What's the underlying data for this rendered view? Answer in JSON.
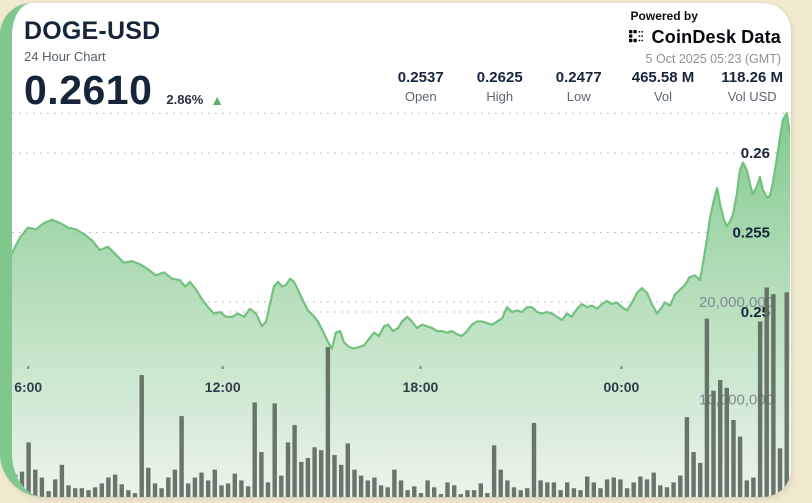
{
  "colors": {
    "frame_cream": "#f1e9ce",
    "stripe_green": "#7fc78d",
    "brand_dark": "#17253b",
    "accent_green": "#52b56a"
  },
  "header": {
    "symbol": "DOGE-USD",
    "subtitle": "24 Hour Chart",
    "price": "0.2610",
    "change_percent": "2.86%",
    "direction": "up",
    "up_arrow": "▲",
    "powered_by": "Powered by",
    "brand_part1": "CoinDesk",
    "brand_part2": "Data",
    "timestamp": "5 Oct 2025 05:23 (GMT)"
  },
  "stats": [
    {
      "value": "0.2537",
      "label": "Open"
    },
    {
      "value": "0.2625",
      "label": "High"
    },
    {
      "value": "0.2477",
      "label": "Low"
    },
    {
      "value": "465.58 M",
      "label": "Vol"
    },
    {
      "value": "118.26 M",
      "label": "Vol USD"
    }
  ],
  "chart_data": {
    "type": "line",
    "title": "DOGE-USD 24 Hour Chart",
    "grid": "dotted horizontal",
    "legend_position": "none",
    "colors": {
      "line": "#72c17f",
      "fill_top": "#7cc78a",
      "fill_bottom": "#eaf3e8",
      "volume_bar": "#5d6a5e",
      "tick_dash": "#8a9096"
    },
    "x_axis": {
      "window_hours": 24,
      "ticks": [
        {
          "label": "6:00",
          "hours_from_start": 0.5
        },
        {
          "label": "12:00",
          "hours_from_start": 6.5
        },
        {
          "label": "18:00",
          "hours_from_start": 12.6
        },
        {
          "label": "00:00",
          "hours_from_start": 18.8
        }
      ]
    },
    "price_axis": {
      "side": "right",
      "range": [
        0.2465,
        0.2635
      ],
      "ticks": [
        {
          "price": 0.2625,
          "label": ""
        },
        {
          "price": 0.26,
          "label": "0.26"
        },
        {
          "price": 0.255,
          "label": "0.255"
        },
        {
          "price": 0.25,
          "label": "0.25"
        }
      ]
    },
    "volume_axis": {
      "side": "right",
      "ticks": [
        {
          "millions": 20,
          "label": "20,000,000"
        },
        {
          "millions": 10,
          "label": "10,000,000"
        }
      ]
    },
    "price_series": {
      "name": "DOGE-USD price",
      "points": [
        [
          0,
          0.2537
        ],
        [
          0.25,
          0.2547
        ],
        [
          0.49,
          0.2553
        ],
        [
          0.74,
          0.2552
        ],
        [
          0.99,
          0.2556
        ],
        [
          1.23,
          0.2558
        ],
        [
          1.48,
          0.2556
        ],
        [
          1.73,
          0.2553
        ],
        [
          1.97,
          0.2552
        ],
        [
          2.22,
          0.2549
        ],
        [
          2.47,
          0.2545
        ],
        [
          2.71,
          0.2539
        ],
        [
          2.96,
          0.2541
        ],
        [
          3.21,
          0.2536
        ],
        [
          3.45,
          0.2531
        ],
        [
          3.7,
          0.2532
        ],
        [
          3.95,
          0.253
        ],
        [
          4.19,
          0.2527
        ],
        [
          4.44,
          0.2523
        ],
        [
          4.69,
          0.2525
        ],
        [
          4.93,
          0.2521
        ],
        [
          5.18,
          0.252
        ],
        [
          5.34,
          0.2516
        ],
        [
          5.49,
          0.2519
        ],
        [
          5.68,
          0.2514
        ],
        [
          5.86,
          0.2508
        ],
        [
          6.05,
          0.2503
        ],
        [
          6.23,
          0.2499
        ],
        [
          6.42,
          0.25
        ],
        [
          6.6,
          0.2497
        ],
        [
          6.79,
          0.2497
        ],
        [
          6.97,
          0.2499
        ],
        [
          7.16,
          0.2497
        ],
        [
          7.34,
          0.2502
        ],
        [
          7.53,
          0.2499
        ],
        [
          7.71,
          0.2491
        ],
        [
          7.84,
          0.2494
        ],
        [
          7.96,
          0.2505
        ],
        [
          8.08,
          0.2516
        ],
        [
          8.21,
          0.2519
        ],
        [
          8.33,
          0.2516
        ],
        [
          8.45,
          0.2517
        ],
        [
          8.58,
          0.2521
        ],
        [
          8.7,
          0.2519
        ],
        [
          8.82,
          0.2514
        ],
        [
          8.98,
          0.2507
        ],
        [
          9.13,
          0.2501
        ],
        [
          9.28,
          0.2498
        ],
        [
          9.44,
          0.2494
        ],
        [
          9.59,
          0.2488
        ],
        [
          9.75,
          0.2481
        ],
        [
          9.87,
          0.2477
        ],
        [
          9.99,
          0.2487
        ],
        [
          10.12,
          0.2488
        ],
        [
          10.24,
          0.2481
        ],
        [
          10.4,
          0.2478
        ],
        [
          10.55,
          0.2477
        ],
        [
          10.7,
          0.2478
        ],
        [
          10.86,
          0.2479
        ],
        [
          11.01,
          0.2483
        ],
        [
          11.17,
          0.2487
        ],
        [
          11.32,
          0.2485
        ],
        [
          11.48,
          0.2491
        ],
        [
          11.6,
          0.2492
        ],
        [
          11.75,
          0.2488
        ],
        [
          11.91,
          0.249
        ],
        [
          12.03,
          0.2494
        ],
        [
          12.19,
          0.2497
        ],
        [
          12.34,
          0.2494
        ],
        [
          12.49,
          0.249
        ],
        [
          12.65,
          0.2492
        ],
        [
          12.8,
          0.2491
        ],
        [
          12.96,
          0.249
        ],
        [
          13.11,
          0.2488
        ],
        [
          13.26,
          0.2488
        ],
        [
          13.42,
          0.2487
        ],
        [
          13.57,
          0.2488
        ],
        [
          13.73,
          0.2486
        ],
        [
          13.88,
          0.2485
        ],
        [
          14.04,
          0.2488
        ],
        [
          14.19,
          0.2492
        ],
        [
          14.34,
          0.2494
        ],
        [
          14.5,
          0.2494
        ],
        [
          14.65,
          0.2493
        ],
        [
          14.81,
          0.2492
        ],
        [
          14.96,
          0.2494
        ],
        [
          15.12,
          0.2496
        ],
        [
          15.27,
          0.2503
        ],
        [
          15.42,
          0.25
        ],
        [
          15.58,
          0.2501
        ],
        [
          15.73,
          0.25
        ],
        [
          15.89,
          0.2503
        ],
        [
          16.04,
          0.2503
        ],
        [
          16.2,
          0.25
        ],
        [
          16.35,
          0.2499
        ],
        [
          16.5,
          0.25
        ],
        [
          16.66,
          0.2499
        ],
        [
          16.81,
          0.2497
        ],
        [
          16.97,
          0.2495
        ],
        [
          17.12,
          0.2499
        ],
        [
          17.27,
          0.2497
        ],
        [
          17.43,
          0.2502
        ],
        [
          17.58,
          0.2505
        ],
        [
          17.74,
          0.2503
        ],
        [
          17.89,
          0.2504
        ],
        [
          18.05,
          0.2502
        ],
        [
          18.2,
          0.2505
        ],
        [
          18.35,
          0.2507
        ],
        [
          18.51,
          0.2505
        ],
        [
          18.66,
          0.2506
        ],
        [
          18.82,
          0.2503
        ],
        [
          18.97,
          0.2501
        ],
        [
          19.13,
          0.2506
        ],
        [
          19.28,
          0.2512
        ],
        [
          19.43,
          0.2515
        ],
        [
          19.59,
          0.2512
        ],
        [
          19.74,
          0.2505
        ],
        [
          19.9,
          0.2499
        ],
        [
          20.05,
          0.2503
        ],
        [
          20.14,
          0.2506
        ],
        [
          20.3,
          0.2504
        ],
        [
          20.45,
          0.2511
        ],
        [
          20.61,
          0.2514
        ],
        [
          20.76,
          0.2517
        ],
        [
          20.91,
          0.2522
        ],
        [
          21.07,
          0.2523
        ],
        [
          21.22,
          0.252
        ],
        [
          21.31,
          0.253
        ],
        [
          21.44,
          0.2546
        ],
        [
          21.53,
          0.2559
        ],
        [
          21.65,
          0.257
        ],
        [
          21.75,
          0.2578
        ],
        [
          21.84,
          0.2568
        ],
        [
          21.96,
          0.2558
        ],
        [
          22.05,
          0.2554
        ],
        [
          22.15,
          0.2557
        ],
        [
          22.24,
          0.2561
        ],
        [
          22.36,
          0.2574
        ],
        [
          22.45,
          0.2589
        ],
        [
          22.55,
          0.2594
        ],
        [
          22.67,
          0.2589
        ],
        [
          22.76,
          0.2581
        ],
        [
          22.85,
          0.2574
        ],
        [
          22.98,
          0.2579
        ],
        [
          23.07,
          0.2585
        ],
        [
          23.16,
          0.2577
        ],
        [
          23.29,
          0.2572
        ],
        [
          23.38,
          0.2573
        ],
        [
          23.47,
          0.2581
        ],
        [
          23.59,
          0.2596
        ],
        [
          23.69,
          0.261
        ],
        [
          23.78,
          0.2621
        ],
        [
          23.9,
          0.2625
        ],
        [
          24,
          0.2612
        ]
      ]
    },
    "volume_series": {
      "name": "Volume",
      "unit": "millions",
      "values": [
        2.3,
        2.6,
        5.6,
        2.8,
        2.0,
        0.6,
        1.8,
        3.3,
        1.2,
        0.9,
        0.9,
        0.7,
        1.0,
        1.4,
        2.0,
        2.3,
        1.3,
        0.7,
        0.4,
        12.5,
        3.0,
        1.4,
        0.9,
        2.0,
        2.8,
        8.3,
        1.4,
        2.0,
        2.5,
        1.7,
        2.8,
        1.2,
        1.4,
        2.4,
        1.7,
        1.1,
        9.7,
        4.6,
        1.5,
        9.6,
        2.2,
        5.6,
        7.4,
        3.6,
        4.0,
        5.1,
        4.8,
        15.4,
        4.3,
        3.3,
        5.5,
        2.8,
        2.2,
        1.7,
        2.0,
        1.2,
        1.0,
        2.8,
        1.7,
        0.7,
        1.1,
        0.4,
        1.7,
        1.0,
        0.3,
        1.5,
        1.2,
        0.3,
        0.7,
        0.7,
        1.4,
        0.4,
        5.3,
        2.8,
        1.7,
        1.0,
        0.7,
        0.9,
        7.6,
        1.7,
        1.5,
        1.5,
        0.7,
        1.5,
        0.9,
        0.7,
        2.1,
        1.5,
        0.9,
        1.8,
        2.0,
        1.8,
        0.9,
        1.5,
        2.1,
        1.8,
        2.5,
        1.2,
        1.0,
        1.5,
        2.2,
        8.2,
        4.6,
        3.5,
        18.3,
        10.9,
        12.0,
        11.2,
        7.9,
        6.2,
        1.7,
        2.0,
        18.0,
        21.5,
        20.8,
        5.0,
        21.0
      ]
    }
  }
}
